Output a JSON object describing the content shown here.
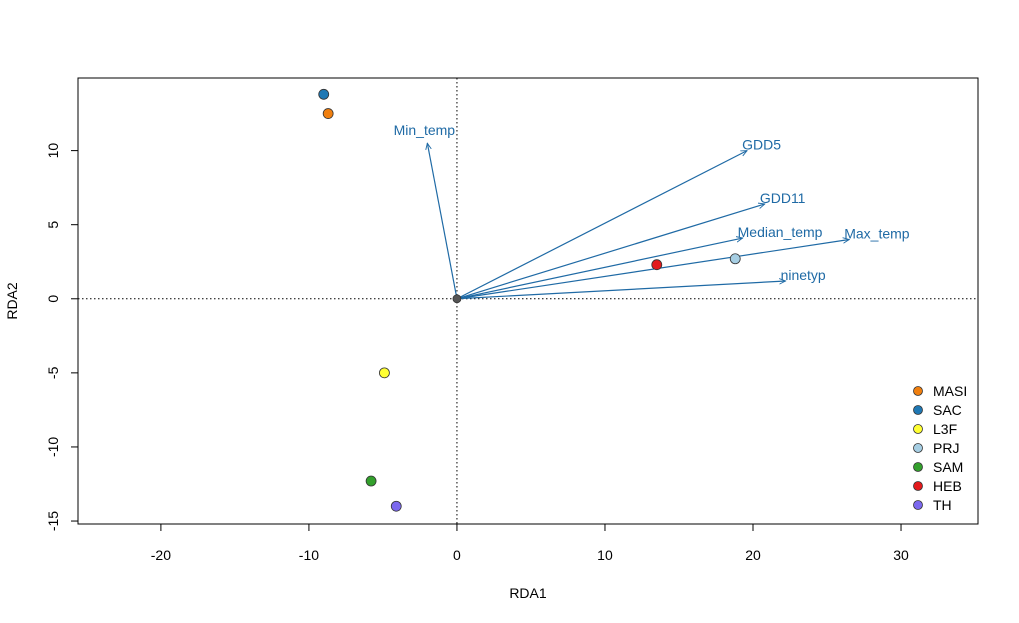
{
  "chart_data": {
    "type": "scatter",
    "title": "",
    "xlabel": "RDA1",
    "ylabel": "RDA2",
    "xlim": [
      -25.6,
      35.2
    ],
    "ylim": [
      -15.2,
      14.9
    ],
    "xticks": [
      -20,
      -10,
      0,
      10,
      20,
      30
    ],
    "yticks": [
      -15,
      -10,
      -5,
      0,
      5,
      10
    ],
    "xtick_labels": [
      "-20",
      "-10",
      "0",
      "10",
      "20",
      "30"
    ],
    "ytick_labels": [
      "-15",
      "-10",
      "-5",
      "0",
      "5",
      "10"
    ],
    "reference_lines": {
      "x": 0,
      "y": 0,
      "style": "dotted"
    },
    "grid": false,
    "points": [
      {
        "label": "MASI",
        "x": -8.7,
        "y": 12.5,
        "color": "#f07f0f"
      },
      {
        "label": "SAC",
        "x": -9.0,
        "y": 13.8,
        "color": "#1f78b4"
      },
      {
        "label": "L3F",
        "x": -4.9,
        "y": -5.0,
        "color": "#ffff33"
      },
      {
        "label": "PRJ",
        "x": 18.8,
        "y": 2.7,
        "color": "#a6cee3"
      },
      {
        "label": "SAM",
        "x": -5.8,
        "y": -12.3,
        "color": "#33a02c"
      },
      {
        "label": "HEB",
        "x": 13.5,
        "y": 2.3,
        "color": "#e31a1c"
      },
      {
        "label": "TH",
        "x": -4.1,
        "y": -14.0,
        "color": "#7b68ee"
      },
      {
        "label": "",
        "x": 0,
        "y": 0,
        "color": "#555555"
      }
    ],
    "arrows": [
      {
        "label": "Min_temp",
        "x": -2.0,
        "y": 10.5
      },
      {
        "label": "GDD5",
        "x": 19.6,
        "y": 10.0
      },
      {
        "label": "GDD11",
        "x": 20.8,
        "y": 6.4
      },
      {
        "label": "Median_temp",
        "x": 19.3,
        "y": 4.1
      },
      {
        "label": "Max_temp",
        "x": 26.5,
        "y": 4.0
      },
      {
        "label": "ninetyp",
        "x": 22.2,
        "y": 1.2
      }
    ],
    "arrow_color": "#1f6aa5",
    "legend": {
      "position": "bottom-right",
      "entries": [
        {
          "label": "MASI",
          "color": "#f07f0f"
        },
        {
          "label": "SAC",
          "color": "#1f78b4"
        },
        {
          "label": "L3F",
          "color": "#ffff33"
        },
        {
          "label": "PRJ",
          "color": "#a6cee3"
        },
        {
          "label": "SAM",
          "color": "#33a02c"
        },
        {
          "label": "HEB",
          "color": "#e31a1c"
        },
        {
          "label": "TH",
          "color": "#7b68ee"
        }
      ]
    }
  }
}
